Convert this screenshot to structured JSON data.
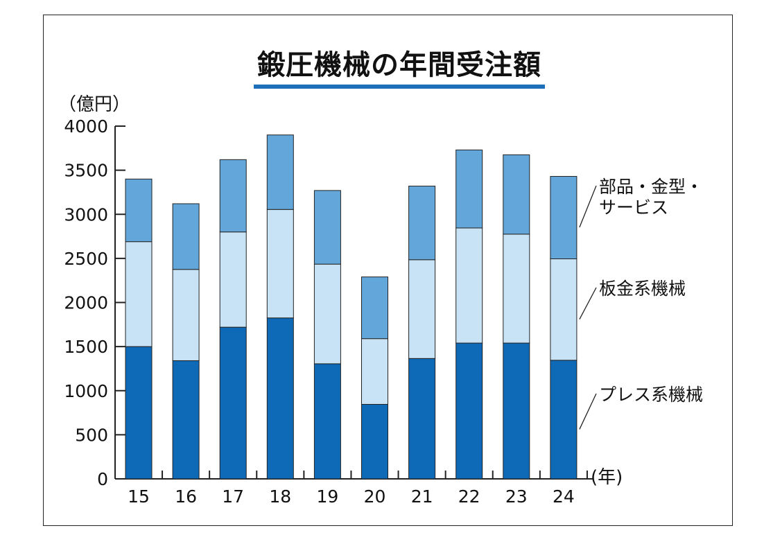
{
  "title": "鍛圧機械の年間受注額",
  "y_unit": "（億円）",
  "x_unit": "(年)",
  "colors": {
    "accent": "#1e6fba",
    "press": "#0e6ab7",
    "sheet": "#c8e3f5",
    "parts": "#62a6da",
    "stroke": "#222222"
  },
  "chart_data": {
    "type": "bar",
    "stacked": true,
    "title": "鍛圧機械の年間受注額",
    "xlabel": "(年)",
    "ylabel": "（億円）",
    "ylim": [
      0,
      4000
    ],
    "yticks": [
      0,
      500,
      1000,
      1500,
      2000,
      2500,
      3000,
      3500,
      4000
    ],
    "categories": [
      "15",
      "16",
      "17",
      "18",
      "19",
      "20",
      "21",
      "22",
      "23",
      "24"
    ],
    "series": [
      {
        "name": "プレス系機械",
        "values": [
          1500,
          1340,
          1720,
          1825,
          1305,
          845,
          1365,
          1540,
          1540,
          1345
        ]
      },
      {
        "name": "板金系機械",
        "values": [
          1190,
          1035,
          1080,
          1230,
          1130,
          745,
          1120,
          1305,
          1235,
          1150
        ]
      },
      {
        "name": "部品・金型・サービス",
        "values": [
          710,
          745,
          820,
          845,
          835,
          700,
          835,
          885,
          900,
          935
        ]
      }
    ],
    "legend": [
      {
        "lines": [
          "部品・金型・",
          "サービス"
        ]
      },
      {
        "lines": [
          "板金系機械"
        ]
      },
      {
        "lines": [
          "プレス系機械"
        ]
      }
    ],
    "grid": false,
    "legend_placement": "right, beside last bar"
  }
}
